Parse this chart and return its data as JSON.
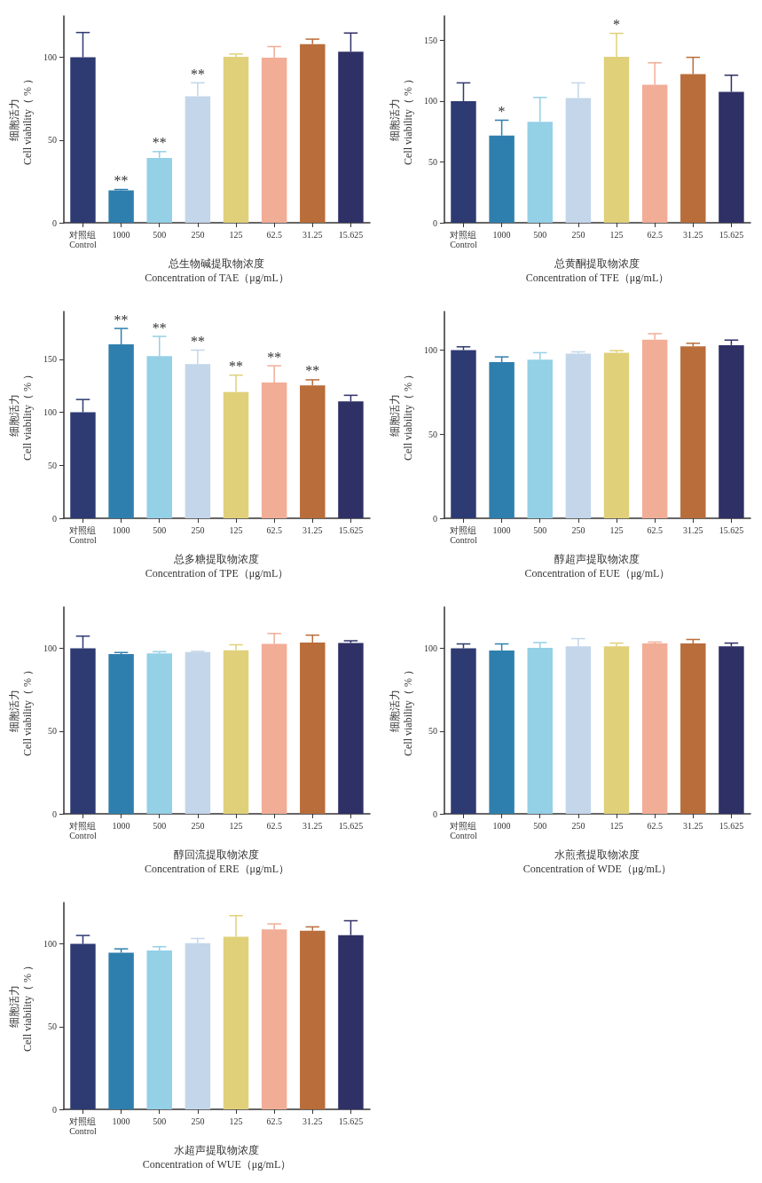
{
  "chart_data": [
    {
      "type": "bar",
      "xlabel": "总生物碱提取物浓度\nConcentration of TAE（μg/mL）",
      "ylabel": "细胞活力\nCell viability（ % ）",
      "categories": [
        "对照组\nControl",
        "1000",
        "500",
        "250",
        "125",
        "62.5",
        "31.25",
        "15.625"
      ],
      "colors": [
        "#2e3a72",
        "#2f7fae",
        "#94d0e6",
        "#c3d6ea",
        "#e0d07a",
        "#f2ad96",
        "#b86d3b",
        "#2f3066"
      ],
      "values": [
        100,
        19.6,
        39.2,
        76.5,
        100.3,
        99.8,
        108,
        103.4
      ],
      "errors": [
        [
          100,
          115
        ],
        [
          19.6,
          20.1
        ],
        [
          39.2,
          43
        ],
        [
          76.5,
          84.6
        ],
        [
          100.3,
          102
        ],
        [
          99.8,
          106.5
        ],
        [
          108,
          111
        ],
        [
          103.4,
          114.7
        ]
      ],
      "ylim": [
        0,
        125
      ],
      "yticks": [
        0,
        50,
        100
      ],
      "annotations": [
        {
          "text": "**",
          "x": "1000",
          "y": 20.1
        },
        {
          "text": "**",
          "x": "500",
          "y": 43
        },
        {
          "text": "**",
          "x": "250",
          "y": 84.6
        }
      ]
    },
    {
      "type": "bar",
      "xlabel": "总黄酮提取物浓度\nConcentration of TFE（μg/mL）",
      "ylabel": "细胞活力\nCell viability（ % ）",
      "categories": [
        "对照组\nControl",
        "1000",
        "500",
        "250",
        "125",
        "62.5",
        "31.25",
        "15.625"
      ],
      "colors": [
        "#2e3a72",
        "#2f7fae",
        "#94d0e6",
        "#c3d6ea",
        "#e0d07a",
        "#f2ad96",
        "#b86d3b",
        "#2f3066"
      ],
      "values": [
        100,
        71.7,
        83,
        102.5,
        136.4,
        113.5,
        122.2,
        107.6
      ],
      "errors": [
        [
          100,
          115
        ],
        [
          71.7,
          84.3
        ],
        [
          83,
          103
        ],
        [
          102.5,
          115
        ],
        [
          136.4,
          155.7
        ],
        [
          113.5,
          131.5
        ],
        [
          122.2,
          136
        ],
        [
          107.6,
          121.3
        ]
      ],
      "ylim": [
        0,
        170
      ],
      "yticks": [
        0,
        50,
        100,
        150
      ],
      "annotations": [
        {
          "text": "*",
          "x": "1000",
          "y": 84.3
        },
        {
          "text": "*",
          "x": "125",
          "y": 155.7
        }
      ]
    },
    {
      "type": "bar",
      "xlabel": "总多糖提取物浓度\nConcentration of TPE（μg/mL）",
      "ylabel": "细胞活力\nCell viability（ % ）",
      "categories": [
        "对照组\nControl",
        "1000",
        "500",
        "250",
        "125",
        "62.5",
        "31.25",
        "15.625"
      ],
      "colors": [
        "#2e3a72",
        "#2f7fae",
        "#94d0e6",
        "#c3d6ea",
        "#e0d07a",
        "#f2ad96",
        "#b86d3b",
        "#2f3066"
      ],
      "values": [
        100,
        164,
        153,
        145.4,
        119,
        128,
        125.3,
        110.3
      ],
      "errors": [
        [
          100,
          112
        ],
        [
          164,
          179
        ],
        [
          153,
          171.5
        ],
        [
          145.4,
          158.6
        ],
        [
          119,
          135
        ],
        [
          128,
          143.8
        ],
        [
          125.3,
          130.6
        ],
        [
          110.3,
          116
        ]
      ],
      "ylim": [
        0,
        195
      ],
      "yticks": [
        0,
        50,
        100,
        150
      ],
      "annotations": [
        {
          "text": "**",
          "x": "1000",
          "y": 179
        },
        {
          "text": "**",
          "x": "500",
          "y": 171.5
        },
        {
          "text": "**",
          "x": "250",
          "y": 158.6
        },
        {
          "text": "**",
          "x": "125",
          "y": 135
        },
        {
          "text": "**",
          "x": "62.5",
          "y": 143.8
        },
        {
          "text": "**",
          "x": "31.25",
          "y": 130.6
        }
      ]
    },
    {
      "type": "bar",
      "xlabel": "醇超声提取物浓度\nConcentration of EUE（μg/mL）",
      "ylabel": "细胞活力\nCell viability（ % ）",
      "categories": [
        "对照组\nControl",
        "1000",
        "500",
        "250",
        "125",
        "62.5",
        "31.25",
        "15.625"
      ],
      "colors": [
        "#2e3a72",
        "#2f7fae",
        "#94d0e6",
        "#c3d6ea",
        "#e0d07a",
        "#f2ad96",
        "#b86d3b",
        "#2f3066"
      ],
      "values": [
        100,
        92.9,
        94.4,
        97.9,
        98.5,
        106.3,
        102.3,
        103
      ],
      "errors": [
        [
          100,
          102
        ],
        [
          92.9,
          96
        ],
        [
          94.4,
          98.5
        ],
        [
          97.9,
          99
        ],
        [
          98.5,
          99.7
        ],
        [
          106.3,
          109.8
        ],
        [
          102.3,
          104.1
        ],
        [
          103,
          106
        ]
      ],
      "ylim": [
        0,
        123
      ],
      "yticks": [
        0,
        50,
        100
      ]
    },
    {
      "type": "bar",
      "xlabel": "醇回流提取物浓度\nConcentration of ERE（μg/mL）",
      "ylabel": "细胞活力\nCell viability（ % ）",
      "categories": [
        "对照组\nControl",
        "1000",
        "500",
        "250",
        "125",
        "62.5",
        "31.25",
        "15.625"
      ],
      "colors": [
        "#2e3a72",
        "#2f7fae",
        "#94d0e6",
        "#c3d6ea",
        "#e0d07a",
        "#f2ad96",
        "#b86d3b",
        "#2f3066"
      ],
      "values": [
        100,
        96.5,
        97,
        97.8,
        98.9,
        102.7,
        103.5,
        103.3
      ],
      "errors": [
        [
          100,
          107.4
        ],
        [
          96.5,
          97.5
        ],
        [
          97,
          98
        ],
        [
          97.8,
          98.2
        ],
        [
          98.9,
          102.2
        ],
        [
          102.7,
          109
        ],
        [
          103.5,
          108
        ],
        [
          103.3,
          104.6
        ]
      ],
      "ylim": [
        0,
        125
      ],
      "yticks": [
        0,
        50,
        100
      ]
    },
    {
      "type": "bar",
      "xlabel": "水煎煮提取物浓度\nConcentration of WDE（μg/mL）",
      "ylabel": "细胞活力\nCell viability（ % ）",
      "categories": [
        "对照组\nControl",
        "1000",
        "500",
        "250",
        "125",
        "62.5",
        "31.25",
        "15.625"
      ],
      "colors": [
        "#2e3a72",
        "#2f7fae",
        "#94d0e6",
        "#c3d6ea",
        "#e0d07a",
        "#f2ad96",
        "#b86d3b",
        "#2f3066"
      ],
      "values": [
        100,
        98.7,
        100.3,
        101.3,
        101.3,
        103,
        103,
        101.3
      ],
      "errors": [
        [
          100,
          102.7
        ],
        [
          98.7,
          102.7
        ],
        [
          100.3,
          103.5
        ],
        [
          101.3,
          105.9
        ],
        [
          101.3,
          103.2
        ],
        [
          103,
          103.8
        ],
        [
          103,
          105.4
        ],
        [
          101.3,
          103.2
        ]
      ],
      "ylim": [
        0,
        125
      ],
      "yticks": [
        0,
        50,
        100
      ]
    },
    {
      "type": "bar",
      "xlabel": "水超声提取物浓度\nConcentration of WUE（μg/mL）",
      "ylabel": "细胞活力\nCell viability（ % ）",
      "categories": [
        "对照组\nControl",
        "1000",
        "500",
        "250",
        "125",
        "62.5",
        "31.25",
        "15.625"
      ],
      "colors": [
        "#2e3a72",
        "#2f7fae",
        "#94d0e6",
        "#c3d6ea",
        "#e0d07a",
        "#f2ad96",
        "#b86d3b",
        "#2f3066"
      ],
      "values": [
        100,
        94.7,
        96,
        100.5,
        104.3,
        108.8,
        108,
        105.3
      ],
      "errors": [
        [
          100,
          105.1
        ],
        [
          94.7,
          97
        ],
        [
          96,
          98.3
        ],
        [
          100.5,
          103.3
        ],
        [
          104.3,
          117.1
        ],
        [
          108.8,
          112.1
        ],
        [
          108,
          110.3
        ],
        [
          105.3,
          114
        ]
      ],
      "ylim": [
        0,
        125
      ],
      "yticks": [
        0,
        50,
        100
      ]
    }
  ]
}
